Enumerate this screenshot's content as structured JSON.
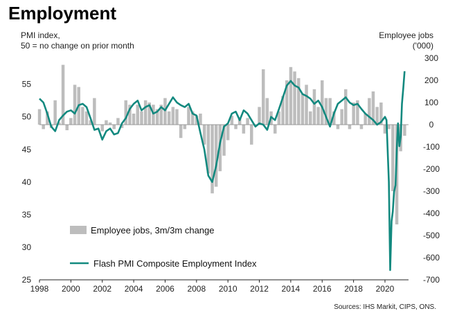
{
  "title": "Employment",
  "left_axis_note": [
    "PMI index,",
    "50 = no change on prior month"
  ],
  "right_axis_note": [
    "Employee jobs",
    "('000)"
  ],
  "source": "Sources: IHS Markit, CIPS, ONS.",
  "colors": {
    "line": "#12897f",
    "bars": "#bdbdbd",
    "zero_line": "#999999"
  },
  "chart_data": {
    "type": "bar+line",
    "x_ticks": [
      "1998",
      "2000",
      "2002",
      "2004",
      "2006",
      "2008",
      "2010",
      "2012",
      "2014",
      "2016",
      "2018",
      "2020"
    ],
    "x_range": [
      1998,
      2021.5
    ],
    "y_left": {
      "ticks": [
        "25",
        "30",
        "35",
        "40",
        "45",
        "50",
        "55"
      ],
      "range": [
        25,
        59
      ]
    },
    "y_right": {
      "ticks": [
        "300",
        "200",
        "100",
        "0",
        "-100",
        "-200",
        "-300",
        "-400",
        "-500",
        "-600",
        "-700"
      ],
      "range": [
        -700,
        300
      ]
    },
    "series": [
      {
        "name": "Employee jobs, 3m/3m change",
        "type": "bar",
        "axis": "right",
        "x": [
          1998.0,
          1998.25,
          1998.5,
          1998.75,
          1999.0,
          1999.25,
          1999.5,
          1999.75,
          2000.0,
          2000.25,
          2000.5,
          2000.75,
          2001.0,
          2001.25,
          2001.5,
          2001.75,
          2002.0,
          2002.25,
          2002.5,
          2002.75,
          2003.0,
          2003.25,
          2003.5,
          2003.75,
          2004.0,
          2004.25,
          2004.5,
          2004.75,
          2005.0,
          2005.25,
          2005.5,
          2005.75,
          2006.0,
          2006.25,
          2006.5,
          2006.75,
          2007.0,
          2007.25,
          2007.5,
          2007.75,
          2008.0,
          2008.25,
          2008.5,
          2008.75,
          2009.0,
          2009.25,
          2009.5,
          2009.75,
          2010.0,
          2010.25,
          2010.5,
          2010.75,
          2011.0,
          2011.25,
          2011.5,
          2011.75,
          2012.0,
          2012.25,
          2012.5,
          2012.75,
          2013.0,
          2013.25,
          2013.5,
          2013.75,
          2014.0,
          2014.25,
          2014.5,
          2014.75,
          2015.0,
          2015.25,
          2015.5,
          2015.75,
          2016.0,
          2016.25,
          2016.5,
          2016.75,
          2017.0,
          2017.25,
          2017.5,
          2017.75,
          2018.0,
          2018.25,
          2018.5,
          2018.75,
          2019.0,
          2019.25,
          2019.5,
          2019.75,
          2020.0,
          2020.25,
          2020.5,
          2020.75,
          2021.0,
          2021.25
        ],
        "values": [
          70,
          -20,
          60,
          -15,
          110,
          10,
          270,
          -25,
          30,
          180,
          170,
          80,
          60,
          20,
          120,
          0,
          -30,
          20,
          10,
          -20,
          30,
          -15,
          110,
          90,
          50,
          90,
          60,
          110,
          100,
          90,
          70,
          90,
          120,
          60,
          80,
          70,
          -60,
          -20,
          80,
          60,
          40,
          50,
          -90,
          -220,
          -310,
          -280,
          -210,
          -140,
          -70,
          40,
          -20,
          30,
          -40,
          30,
          -90,
          0,
          80,
          250,
          120,
          60,
          -40,
          60,
          130,
          200,
          260,
          240,
          210,
          140,
          180,
          60,
          160,
          80,
          200,
          120,
          120,
          60,
          -20,
          70,
          160,
          -20,
          100,
          110,
          -20,
          50,
          120,
          150,
          80,
          100,
          -40,
          -20,
          -300,
          -450,
          -120,
          -50
        ]
      },
      {
        "name": "Flash PMI Composite Employment Index",
        "type": "line",
        "axis": "left",
        "x": [
          1998.0,
          1998.25,
          1998.5,
          1998.75,
          1999.0,
          1999.25,
          1999.5,
          1999.75,
          2000.0,
          2000.25,
          2000.5,
          2000.75,
          2001.0,
          2001.25,
          2001.5,
          2001.75,
          2002.0,
          2002.25,
          2002.5,
          2002.75,
          2003.0,
          2003.25,
          2003.5,
          2003.75,
          2004.0,
          2004.25,
          2004.5,
          2004.75,
          2005.0,
          2005.25,
          2005.5,
          2005.75,
          2006.0,
          2006.25,
          2006.5,
          2006.75,
          2007.0,
          2007.25,
          2007.5,
          2007.75,
          2008.0,
          2008.25,
          2008.5,
          2008.75,
          2009.0,
          2009.25,
          2009.5,
          2009.75,
          2010.0,
          2010.25,
          2010.5,
          2010.75,
          2011.0,
          2011.25,
          2011.5,
          2011.75,
          2012.0,
          2012.25,
          2012.5,
          2012.75,
          2013.0,
          2013.25,
          2013.5,
          2013.75,
          2014.0,
          2014.25,
          2014.5,
          2014.75,
          2015.0,
          2015.25,
          2015.5,
          2015.75,
          2016.0,
          2016.25,
          2016.5,
          2016.75,
          2017.0,
          2017.25,
          2017.5,
          2017.75,
          2018.0,
          2018.25,
          2018.5,
          2018.75,
          2019.0,
          2019.25,
          2019.5,
          2019.75,
          2020.0,
          2020.1,
          2020.25,
          2020.33,
          2020.42,
          2020.5,
          2020.58,
          2020.67,
          2020.75,
          2020.83,
          2020.92,
          2021.0,
          2021.08,
          2021.17,
          2021.25
        ],
        "values": [
          52.8,
          52.2,
          50.5,
          48.5,
          47.8,
          49.5,
          50.2,
          50.8,
          51.0,
          50.5,
          51.8,
          52.0,
          51.5,
          49.8,
          48.0,
          48.2,
          46.5,
          47.8,
          48.2,
          47.3,
          47.5,
          49.0,
          49.8,
          51.2,
          52.0,
          52.5,
          51.0,
          51.5,
          51.8,
          50.5,
          50.8,
          51.5,
          51.0,
          52.0,
          53.0,
          52.2,
          51.8,
          51.5,
          52.0,
          50.5,
          50.2,
          47.5,
          45.0,
          41.0,
          40.0,
          42.5,
          46.0,
          48.5,
          49.0,
          50.5,
          50.8,
          49.5,
          51.0,
          50.5,
          49.5,
          48.5,
          49.0,
          48.8,
          48.0,
          50.0,
          49.5,
          51.2,
          53.0,
          54.8,
          55.5,
          54.8,
          54.5,
          53.5,
          53.2,
          52.8,
          52.0,
          52.5,
          51.5,
          50.0,
          48.5,
          50.5,
          52.0,
          52.5,
          53.0,
          52.2,
          51.8,
          52.0,
          51.2,
          50.5,
          50.0,
          49.5,
          48.8,
          49.2,
          50.0,
          49.5,
          40.0,
          26.5,
          34.0,
          35.5,
          38.5,
          39.5,
          45.0,
          49.0,
          45.5,
          47.0,
          52.0,
          54.5,
          57.0
        ]
      }
    ]
  }
}
